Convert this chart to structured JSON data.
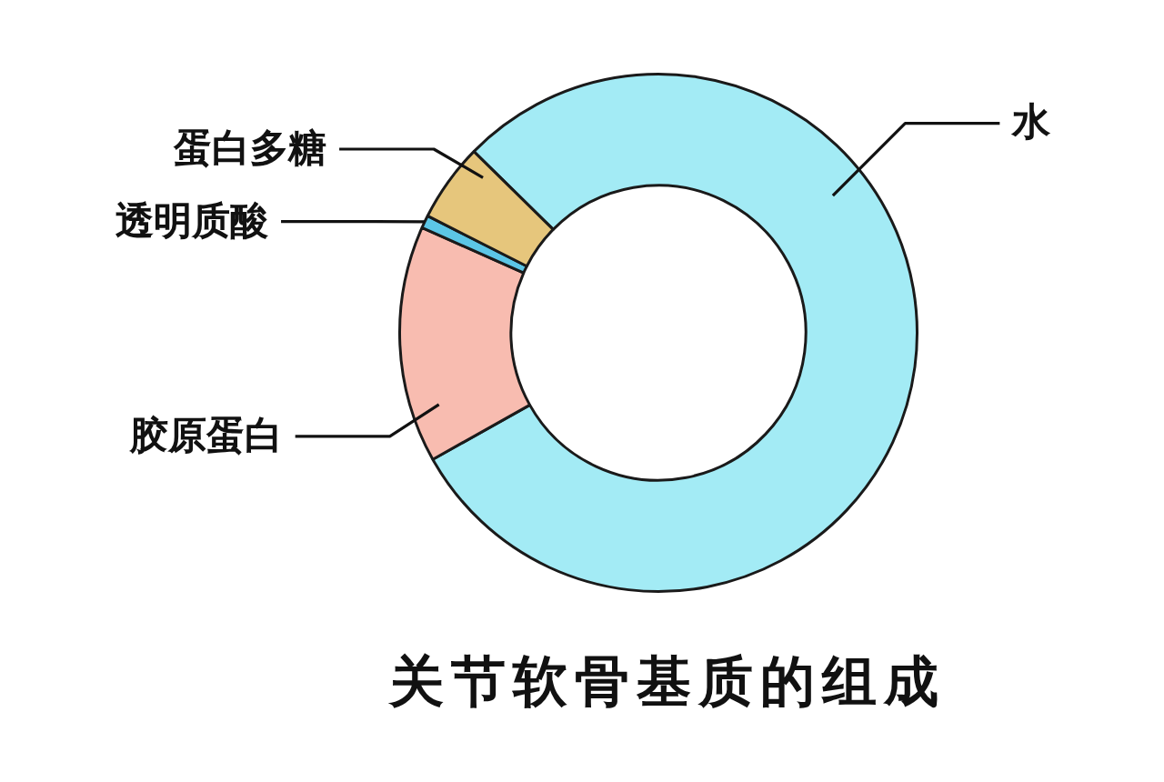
{
  "chart_data": {
    "type": "donut",
    "title": "关节软骨基质的组成",
    "categories": [
      "水",
      "胶原蛋白",
      "透明质酸",
      "蛋白多糖"
    ],
    "values": [
      79.5,
      14.8,
      0.8,
      4.9
    ],
    "colors": [
      "#a3ebf5",
      "#f8bcb0",
      "#5cc6e6",
      "#e6c67c"
    ]
  }
}
